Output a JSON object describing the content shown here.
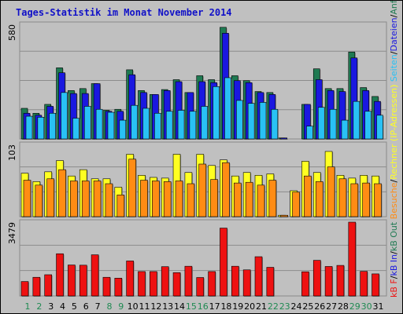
{
  "title": "Tages-Statistik im Monat November 2014",
  "colors": {
    "background": "#c0c0c0",
    "title": "#1010c8",
    "anfragen": "#1f7a52",
    "dateien": "#1a18e0",
    "seiten": "#29c1f5",
    "rechner": "#ffff22",
    "besuche": "#ff8c14",
    "kb_f": "#ee1111",
    "kb_in": "#1a18e0",
    "kb_out": "#1f7a52"
  },
  "side_label": {
    "anfragen": "Anfragen",
    "dateien": "Dateien",
    "seiten": "Seiten",
    "besuche": "Besuche",
    "rechner": "Rechner (IP-Adressen)",
    "kb_out": "kB Out",
    "kb_in": "kB In",
    "kb_f": "kB F",
    "sep": "/"
  },
  "chart_data": [
    {
      "type": "bar",
      "categories": [
        "1",
        "2",
        "3",
        "4",
        "5",
        "6",
        "7",
        "8",
        "9",
        "10",
        "11",
        "12",
        "13",
        "14",
        "15",
        "16",
        "17",
        "18",
        "19",
        "20",
        "21",
        "22",
        "23",
        "24",
        "25",
        "26",
        "27",
        "28",
        "29",
        "30",
        "31"
      ],
      "weekend_days": [
        "1",
        "2",
        "8",
        "9",
        "15",
        "16",
        "22",
        "23",
        "29",
        "30"
      ],
      "y_tick_label": "580",
      "ylim": [
        0,
        580
      ],
      "series": [
        {
          "name": "Anfragen",
          "values": [
            155,
            130,
            175,
            360,
            245,
            255,
            280,
            145,
            150,
            350,
            245,
            225,
            250,
            300,
            235,
            320,
            300,
            565,
            320,
            295,
            240,
            235,
            5,
            0,
            175,
            355,
            255,
            255,
            440,
            260,
            215
          ]
        },
        {
          "name": "Dateien",
          "values": [
            130,
            120,
            165,
            335,
            230,
            230,
            280,
            140,
            140,
            325,
            235,
            225,
            245,
            290,
            235,
            290,
            285,
            535,
            295,
            285,
            235,
            225,
            5,
            0,
            175,
            300,
            245,
            240,
            410,
            245,
            190
          ]
        },
        {
          "name": "Seiten",
          "values": [
            115,
            110,
            130,
            235,
            105,
            165,
            150,
            135,
            95,
            170,
            155,
            130,
            140,
            145,
            140,
            165,
            265,
            310,
            195,
            180,
            185,
            150,
            0,
            0,
            65,
            160,
            150,
            95,
            190,
            140,
            120
          ]
        }
      ]
    },
    {
      "type": "bar",
      "categories": [
        "1",
        "2",
        "3",
        "4",
        "5",
        "6",
        "7",
        "8",
        "9",
        "10",
        "11",
        "12",
        "13",
        "14",
        "15",
        "16",
        "17",
        "18",
        "19",
        "20",
        "21",
        "22",
        "23",
        "24",
        "25",
        "26",
        "27",
        "28",
        "29",
        "30",
        "31"
      ],
      "y_tick_label": "103",
      "ylim": [
        0,
        103
      ],
      "series": [
        {
          "name": "Rechner (IP-Adressen)",
          "values": [
            62,
            50,
            64,
            80,
            58,
            67,
            54,
            54,
            42,
            89,
            59,
            56,
            55,
            89,
            63,
            89,
            73,
            81,
            58,
            63,
            59,
            61,
            2,
            37,
            79,
            63,
            93,
            59,
            55,
            59,
            58
          ]
        },
        {
          "name": "Besuche",
          "values": [
            52,
            45,
            54,
            67,
            51,
            51,
            51,
            47,
            31,
            82,
            52,
            51,
            50,
            51,
            47,
            75,
            53,
            77,
            48,
            49,
            45,
            52,
            2,
            35,
            58,
            50,
            71,
            54,
            47,
            48,
            47
          ]
        }
      ]
    },
    {
      "type": "bar",
      "categories": [
        "1",
        "2",
        "3",
        "4",
        "5",
        "6",
        "7",
        "8",
        "9",
        "10",
        "11",
        "12",
        "13",
        "14",
        "15",
        "16",
        "17",
        "18",
        "19",
        "20",
        "21",
        "22",
        "23",
        "24",
        "25",
        "26",
        "27",
        "28",
        "29",
        "30",
        "31"
      ],
      "y_tick_label": "3479",
      "ylim": [
        0,
        3479
      ],
      "series": [
        {
          "name": "kB F",
          "values": [
            680,
            880,
            1000,
            1990,
            1460,
            1450,
            1940,
            880,
            840,
            1650,
            1150,
            1150,
            1380,
            1100,
            1400,
            870,
            1150,
            3200,
            1400,
            1230,
            1850,
            1350,
            0,
            0,
            1140,
            1680,
            1390,
            1440,
            3479,
            1160,
            1040
          ]
        }
      ]
    }
  ]
}
